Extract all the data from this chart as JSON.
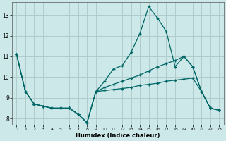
{
  "xlabel": "Humidex (Indice chaleur)",
  "background_color": "#cce8e8",
  "grid_color": "#b0cccc",
  "line_color": "#006666",
  "xlim": [
    -0.5,
    23.5
  ],
  "ylim": [
    7.7,
    13.6
  ],
  "yticks": [
    8,
    9,
    10,
    11,
    12,
    13
  ],
  "xticks": [
    0,
    1,
    2,
    3,
    4,
    5,
    6,
    7,
    8,
    9,
    10,
    11,
    12,
    13,
    14,
    15,
    16,
    17,
    18,
    19,
    20,
    21,
    22,
    23
  ],
  "line1_x": [
    0,
    1,
    2,
    3,
    4,
    5,
    6,
    7,
    8,
    9,
    10,
    11,
    12,
    13,
    14,
    15,
    16,
    17,
    18,
    19,
    20,
    21,
    22,
    23
  ],
  "line1_y": [
    11.1,
    9.3,
    8.7,
    8.6,
    8.5,
    8.5,
    8.5,
    8.2,
    7.8,
    9.3,
    9.8,
    10.4,
    10.55,
    11.2,
    12.1,
    13.4,
    12.85,
    12.2,
    10.5,
    11.0,
    10.5,
    9.3,
    8.5,
    8.4
  ],
  "line2_x": [
    0,
    1,
    2,
    3,
    4,
    5,
    6,
    7,
    8,
    9,
    10,
    11,
    12,
    13,
    14,
    15,
    16,
    17,
    18,
    19,
    20,
    21,
    22,
    23
  ],
  "line2_y": [
    11.1,
    9.3,
    8.7,
    8.6,
    8.5,
    8.5,
    8.5,
    8.2,
    7.8,
    9.3,
    9.5,
    9.65,
    9.8,
    9.95,
    10.1,
    10.3,
    10.5,
    10.65,
    10.8,
    11.0,
    10.5,
    9.3,
    8.5,
    8.4
  ],
  "line3_x": [
    0,
    1,
    2,
    3,
    4,
    5,
    6,
    7,
    8,
    9,
    10,
    11,
    12,
    13,
    14,
    15,
    16,
    17,
    18,
    19,
    20,
    21,
    22,
    23
  ],
  "line3_y": [
    11.1,
    9.3,
    8.7,
    8.6,
    8.5,
    8.5,
    8.5,
    8.2,
    7.8,
    9.3,
    9.35,
    9.4,
    9.45,
    9.5,
    9.6,
    9.65,
    9.7,
    9.8,
    9.85,
    9.9,
    9.95,
    9.3,
    8.5,
    8.4
  ]
}
